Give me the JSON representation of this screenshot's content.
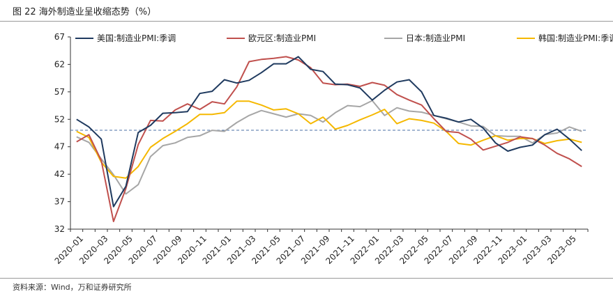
{
  "caption": "图 22 海外制造业呈收缩态势（%）",
  "source": "资料来源：Wind，万和证券研究所",
  "chart_data": {
    "type": "line",
    "title": "海外制造业呈收缩态势（%）",
    "ylim": [
      32,
      67
    ],
    "yticks": [
      32,
      37,
      42,
      47,
      52,
      57,
      62,
      67
    ],
    "reference_line": 50,
    "x": [
      "2020-01",
      "2020-02",
      "2020-03",
      "2020-04",
      "2020-05",
      "2020-06",
      "2020-07",
      "2020-08",
      "2020-09",
      "2020-10",
      "2020-11",
      "2020-12",
      "2021-01",
      "2021-02",
      "2021-03",
      "2021-04",
      "2021-05",
      "2021-06",
      "2021-07",
      "2021-08",
      "2021-09",
      "2021-10",
      "2021-11",
      "2021-12",
      "2022-01",
      "2022-02",
      "2022-03",
      "2022-04",
      "2022-05",
      "2022-06",
      "2022-07",
      "2022-08",
      "2022-09",
      "2022-10",
      "2022-11",
      "2022-12",
      "2023-01",
      "2023-02",
      "2023-03",
      "2023-04",
      "2023-05",
      "2023-06"
    ],
    "xtick_labels": [
      "2020–01",
      "2020–03",
      "2020–05",
      "2020–07",
      "2020–09",
      "2020–11",
      "2021–01",
      "2021–03",
      "2021–05",
      "2021–07",
      "2021–09",
      "2021–11",
      "2022–01",
      "2022–03",
      "2022–05",
      "2022–07",
      "2022–09",
      "2022–11",
      "2023–01",
      "2023–03",
      "2023–05"
    ],
    "legend_position": "top",
    "series": [
      {
        "name": "美国:制造业PMI:季调",
        "color": "#1f3a5f",
        "values": [
          52.0,
          50.6,
          48.4,
          36.1,
          39.8,
          49.6,
          50.9,
          53.1,
          53.2,
          53.4,
          56.7,
          57.1,
          59.2,
          58.6,
          59.1,
          60.5,
          62.1,
          62.1,
          63.4,
          61.1,
          60.7,
          58.4,
          58.3,
          57.7,
          55.5,
          57.3,
          58.8,
          59.2,
          57.0,
          52.7,
          52.2,
          51.5,
          52.0,
          50.4,
          47.7,
          46.2,
          46.9,
          47.3,
          49.2,
          50.2,
          48.4,
          46.3
        ]
      },
      {
        "name": "欧元区:制造业PMI",
        "color": "#c0504d",
        "values": [
          47.9,
          49.2,
          44.5,
          33.4,
          39.4,
          47.4,
          51.8,
          51.7,
          53.7,
          54.8,
          53.8,
          55.2,
          54.8,
          57.9,
          62.5,
          62.9,
          63.1,
          63.4,
          62.8,
          61.4,
          58.6,
          58.3,
          58.4,
          58.0,
          58.7,
          58.2,
          56.5,
          55.5,
          54.6,
          52.1,
          49.8,
          49.6,
          48.4,
          46.4,
          47.1,
          47.8,
          48.8,
          48.5,
          47.3,
          45.8,
          44.8,
          43.4
        ]
      },
      {
        "name": "日本:制造业PMI",
        "color": "#a6a6a6",
        "values": [
          48.8,
          47.8,
          44.8,
          41.9,
          38.4,
          40.1,
          45.2,
          47.2,
          47.7,
          48.7,
          49.0,
          50.0,
          49.8,
          51.4,
          52.7,
          53.6,
          53.0,
          52.4,
          53.0,
          52.7,
          51.5,
          53.2,
          54.5,
          54.3,
          55.4,
          52.7,
          54.1,
          53.5,
          53.3,
          52.7,
          52.1,
          51.5,
          50.8,
          50.7,
          49.0,
          48.9,
          48.9,
          47.7,
          49.2,
          49.5,
          50.6,
          49.8
        ]
      },
      {
        "name": "韩国:制造业PMI:季调",
        "color": "#f5b800",
        "values": [
          49.8,
          48.7,
          44.2,
          41.6,
          41.3,
          43.4,
          46.9,
          48.5,
          49.8,
          51.2,
          52.9,
          52.9,
          53.2,
          55.3,
          55.3,
          54.6,
          53.7,
          53.9,
          53.0,
          51.2,
          52.4,
          50.2,
          50.9,
          51.9,
          52.8,
          53.8,
          51.2,
          52.1,
          51.8,
          51.3,
          49.8,
          47.6,
          47.3,
          48.2,
          49.0,
          48.2,
          48.5,
          48.5,
          47.6,
          48.1,
          48.4,
          47.8
        ]
      }
    ]
  }
}
